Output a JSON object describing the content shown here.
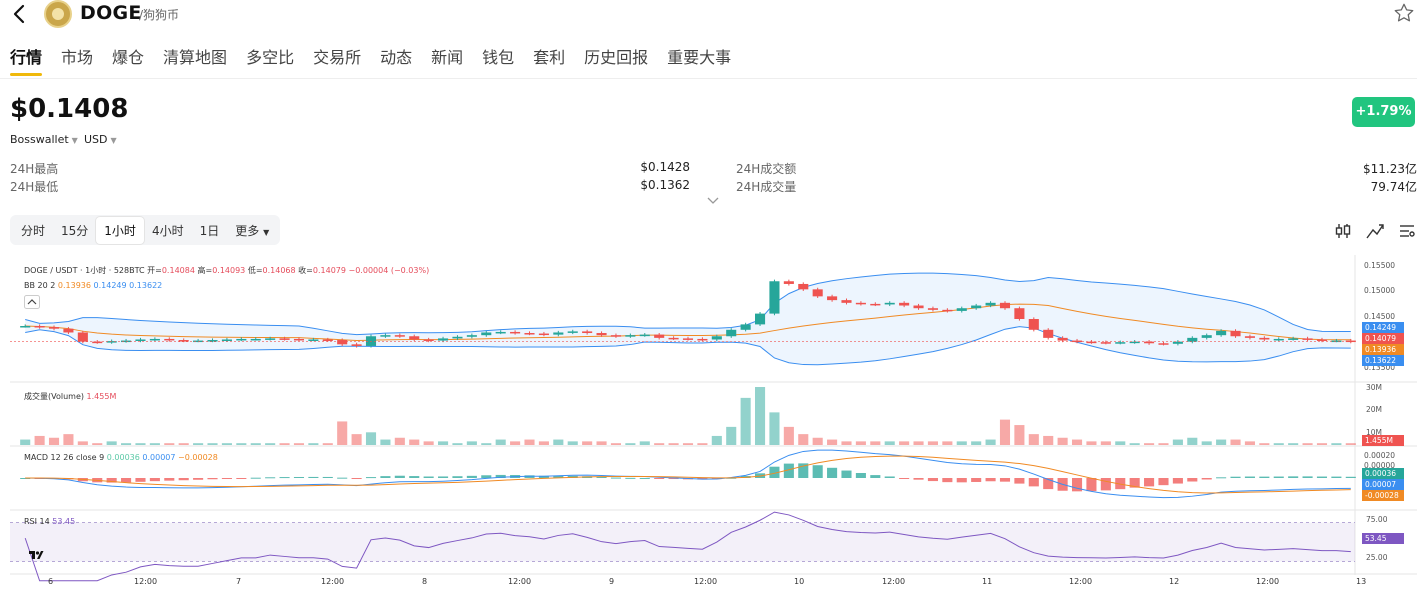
{
  "header": {
    "coin_name": "DOGE",
    "coin_sub": "/狗狗币",
    "back_icon": "back-arrow-icon",
    "favorite_icon": "star-icon"
  },
  "tabs": [
    "行情",
    "市场",
    "爆仓",
    "清算地图",
    "多空比",
    "交易所",
    "动态",
    "新闻",
    "钱包",
    "套利",
    "历史回报",
    "重要大事"
  ],
  "price": {
    "current": "$0.1408",
    "change": "+1.79%",
    "exchange": "Bosswallet",
    "currency": "USD"
  },
  "stats": {
    "high_label": "24H最高",
    "high_value": "$0.1428",
    "low_label": "24H最低",
    "low_value": "$0.1362",
    "turnover_label": "24H成交额",
    "turnover_value": "$11.23亿",
    "volume_label": "24H成交量",
    "volume_value": "79.74亿"
  },
  "intervals": [
    "分时",
    "15分",
    "1小时",
    "4小时",
    "1日",
    "更多"
  ],
  "active_interval": "1小时",
  "tools": [
    "indicator-icon",
    "draw-line-icon",
    "settings-list-icon"
  ],
  "colors": {
    "up": "#26a69a",
    "down": "#ef5350",
    "accent": "#f0b90b",
    "change_bg": "#21c57f",
    "bb_mid": "#f08a24",
    "bb_band": "#3a8ef0",
    "rsi": "#7e57c2"
  },
  "chart_data": {
    "type": "candlestick",
    "title": "DOGE / USDT · 1小时 · 528BTC",
    "ohlc": {
      "open_label": "开=",
      "open": "0.14084",
      "high_label": "高=",
      "high": "0.14093",
      "low_label": "低=",
      "low": "0.14068",
      "close_label": "收=",
      "close": "0.14079",
      "change": "−0.00004 (−0.03%)"
    },
    "bb": {
      "label": "BB 20 2",
      "mid": "0.13936",
      "upper": "0.14249",
      "lower": "0.13622"
    },
    "price_axis": [
      "0.15500",
      "0.15000",
      "0.14500",
      "0.13500"
    ],
    "price_tags": [
      "0.14249",
      "0.14079",
      "0.13936",
      "0.13622"
    ],
    "ylim": [
      0.1335,
      0.1565
    ],
    "volume": {
      "label": "成交量(Volume)",
      "value": "1.455M",
      "axis": [
        "30M",
        "20M",
        "10M"
      ]
    },
    "macd": {
      "label": "MACD 12 26 close 9",
      "hist": "0.00036",
      "macd": "0.00007",
      "signal": "−0.00028",
      "axis": [
        "0.00020",
        "0.00000"
      ],
      "tags": [
        "0.00036",
        "0.00007",
        "-0.00028"
      ]
    },
    "rsi": {
      "label": "RSI 14",
      "value": "53.45",
      "axis": [
        "75.00",
        "25.00"
      ],
      "tag": "53.45"
    },
    "time_labels": [
      "6",
      "12:00",
      "7",
      "12:00",
      "8",
      "12:00",
      "9",
      "12:00",
      "10",
      "12:00",
      "11",
      "12:00",
      "12",
      "12:00",
      "13"
    ],
    "close_series": [
      0.1437,
      0.1435,
      0.1432,
      0.1425,
      0.1408,
      0.1407,
      0.1409,
      0.141,
      0.1412,
      0.1413,
      0.1411,
      0.141,
      0.141,
      0.1411,
      0.1412,
      0.1413,
      0.1413,
      0.1414,
      0.1413,
      0.1412,
      0.1412,
      0.1411,
      0.1403,
      0.14,
      0.1418,
      0.142,
      0.1418,
      0.1412,
      0.141,
      0.1414,
      0.1417,
      0.142,
      0.1425,
      0.1426,
      0.1424,
      0.1423,
      0.1421,
      0.1425,
      0.1427,
      0.1424,
      0.142,
      0.1418,
      0.142,
      0.1421,
      0.1415,
      0.1414,
      0.1413,
      0.1412,
      0.1418,
      0.143,
      0.144,
      0.146,
      0.152,
      0.1515,
      0.1505,
      0.1492,
      0.1485,
      0.148,
      0.1478,
      0.1477,
      0.148,
      0.1475,
      0.147,
      0.1467,
      0.1465,
      0.147,
      0.1475,
      0.148,
      0.147,
      0.145,
      0.143,
      0.1415,
      0.141,
      0.1408,
      0.1407,
      0.1406,
      0.1407,
      0.1408,
      0.1405,
      0.1404,
      0.1408,
      0.1415,
      0.142,
      0.1428,
      0.1418,
      0.1415,
      0.1412,
      0.1413,
      0.1414,
      0.1412,
      0.141,
      0.141,
      0.1408
    ],
    "volume_series": [
      3,
      5,
      4,
      6,
      2,
      1,
      2,
      1,
      1,
      1,
      1,
      1,
      1,
      1,
      1,
      1,
      1,
      1,
      1,
      1,
      1,
      1,
      13,
      6,
      7,
      3,
      4,
      3,
      2,
      2,
      1,
      2,
      1,
      3,
      2,
      3,
      2,
      3,
      2,
      2,
      2,
      1,
      1,
      2,
      1,
      1,
      1,
      1,
      5,
      10,
      26,
      32,
      18,
      10,
      6,
      4,
      3,
      2,
      2,
      2,
      2,
      2,
      2,
      2,
      2,
      2,
      2,
      3,
      14,
      11,
      6,
      5,
      4,
      3,
      2,
      2,
      2,
      1,
      1,
      1,
      3,
      4,
      2,
      3,
      3,
      2,
      1,
      1,
      1,
      1,
      1,
      1,
      1
    ]
  }
}
